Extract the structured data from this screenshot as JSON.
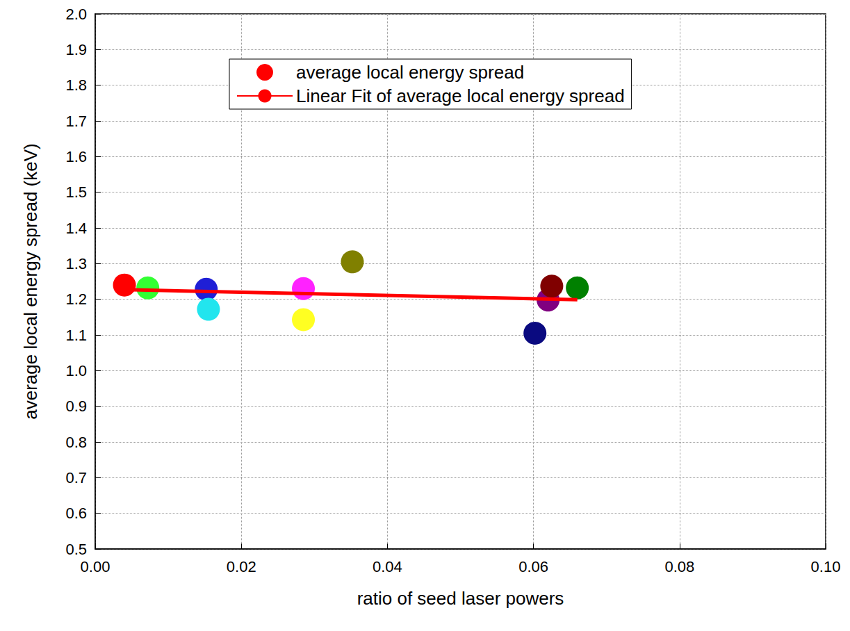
{
  "chart_data": {
    "type": "scatter",
    "xlabel": "ratio of seed laser powers",
    "ylabel": "average local energy spread (keV)",
    "xlim": [
      0,
      0.1
    ],
    "xticks": [
      {
        "value": 0,
        "label": "0.00"
      },
      {
        "value": 0.02,
        "label": "0.02"
      },
      {
        "value": 0.04,
        "label": "0.04"
      },
      {
        "value": 0.06,
        "label": "0.06"
      },
      {
        "value": 0.08,
        "label": "0.08"
      },
      {
        "value": 0.1,
        "label": "0.10"
      }
    ],
    "ylim": [
      0.5,
      2.0
    ],
    "yticks": [
      0.5,
      0.6,
      0.7,
      0.8,
      0.9,
      {
        "value": 1,
        "label": "1.0"
      },
      1.1,
      1.2,
      1.3,
      1.4,
      1.5,
      1.6,
      1.7,
      1.8,
      1.9,
      {
        "value": 2,
        "label": "2.0"
      }
    ],
    "grid": true,
    "legend": "upper right",
    "series": [
      {
        "name": "average local energy spread",
        "type": "scatter",
        "marker": "circle",
        "color": "#ff0000",
        "colors": [
          "#ff0000",
          "#33ff33",
          "#1f1fd6",
          "#22e5ee",
          "#ff22ff",
          "#ffff22",
          "#808000",
          "#0a0a80",
          "#800080",
          "#800000",
          "#008000"
        ],
        "x": [
          0.004,
          0.0072,
          0.0152,
          0.0155,
          0.0285,
          0.0285,
          0.0352,
          0.0602,
          0.062,
          0.0625,
          0.066
        ],
        "values": [
          1.24,
          1.232,
          1.228,
          1.172,
          1.23,
          1.143,
          1.305,
          1.105,
          1.198,
          1.237,
          1.232
        ]
      },
      {
        "name": "Linear Fit of average local energy spread",
        "type": "line",
        "line_style": "solid",
        "color": "#ff0000",
        "x": [
          0.004,
          0.066
        ],
        "values": [
          1.227,
          1.199
        ]
      }
    ]
  }
}
